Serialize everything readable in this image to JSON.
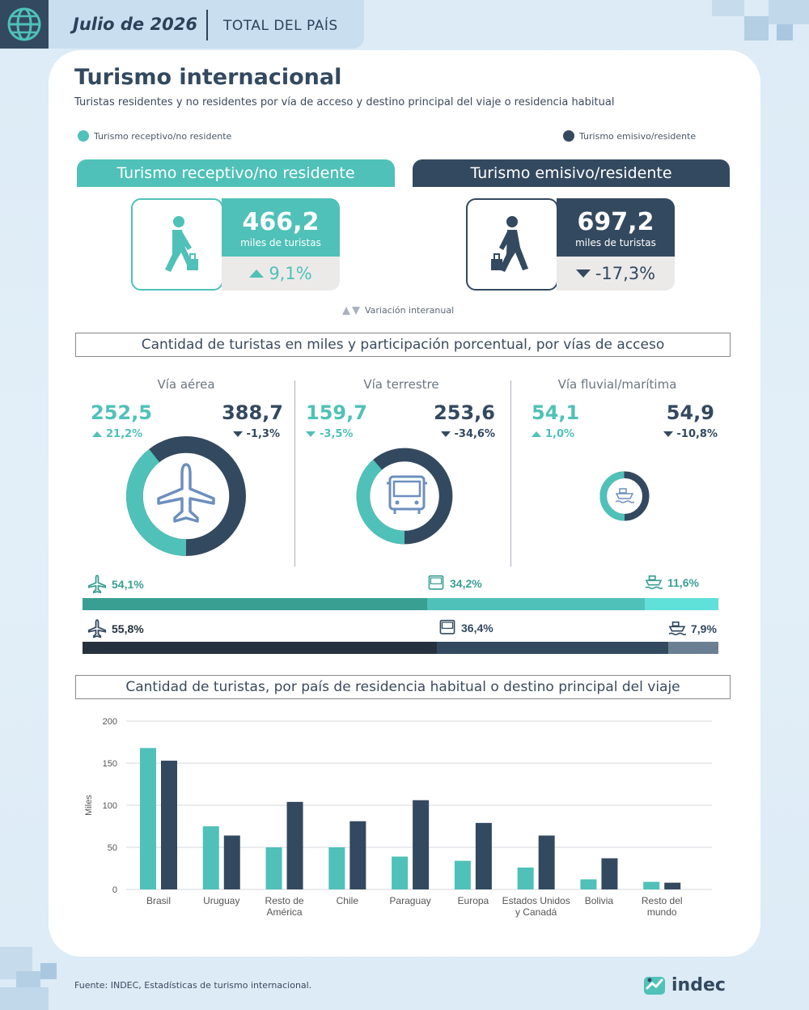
{
  "header": {
    "date": "Julio de 2026",
    "scope": "TOTAL DEL PAÍS",
    "icon": "globe-icon"
  },
  "title": "Turismo internacional",
  "subtitle": "Turistas residentes y no residentes por vía de acceso y destino principal del viaje o residencia habitual",
  "legend": {
    "receptivo": "Turismo receptivo/no residente",
    "emisivo": "Turismo emisivo/residente"
  },
  "colors": {
    "receptivo": "#4fc1b8",
    "emisivo": "#33495f",
    "receptivo_dark": "#3a9f93",
    "receptivo_light": "#5fe0d8",
    "emisivo_dark": "#25313d",
    "emisivo_light": "#6b7f92"
  },
  "receptivo": {
    "band": "Turismo receptivo/no residente",
    "value": "466,2",
    "unit": "miles de turistas",
    "variation": "9,1%",
    "direction": "up",
    "icon": "walking-tourist-icon"
  },
  "emisivo": {
    "band": "Turismo emisivo/residente",
    "value": "697,2",
    "unit": "miles de turistas",
    "variation": "-17,3%",
    "direction": "down",
    "icon": "walking-tourist-icon"
  },
  "variation_note": "Variación interanual",
  "section1_title": "Cantidad de turistas en miles y participación porcentual, por vías de acceso",
  "vias": [
    {
      "name": "Vía aérea",
      "rec_value": "252,5",
      "rec_var": "21,2%",
      "rec_dir": "up",
      "emi_value": "388,7",
      "emi_var": "-1,3%",
      "emi_dir": "down",
      "icon": "airplane-icon"
    },
    {
      "name": "Vía terrestre",
      "rec_value": "159,7",
      "rec_var": "-3,5%",
      "rec_dir": "down",
      "emi_value": "253,6",
      "emi_var": "-34,6%",
      "emi_dir": "down",
      "icon": "bus-icon"
    },
    {
      "name": "Vía fluvial/marítima",
      "rec_value": "54,1",
      "rec_var": "1,0%",
      "rec_dir": "up",
      "emi_value": "54,9",
      "emi_var": "-10,8%",
      "emi_dir": "down",
      "icon": "ship-icon"
    }
  ],
  "shares": {
    "receptivo": [
      {
        "label": "54,1%",
        "value": 54.1,
        "icon": "airplane-icon"
      },
      {
        "label": "34,2%",
        "value": 34.2,
        "icon": "bus-icon"
      },
      {
        "label": "11,6%",
        "value": 11.6,
        "icon": "ship-icon"
      }
    ],
    "emisivo": [
      {
        "label": "55,8%",
        "value": 55.8,
        "icon": "airplane-icon"
      },
      {
        "label": "36,4%",
        "value": 36.4,
        "icon": "bus-icon"
      },
      {
        "label": "7,9%",
        "value": 7.9,
        "icon": "ship-icon"
      }
    ]
  },
  "section2_title": "Cantidad de turistas, por país de residencia habitual o destino principal del viaje",
  "chart_data": {
    "type": "bar",
    "ylabel": "Miles",
    "ylim": [
      0,
      200
    ],
    "yticks": [
      0,
      50,
      100,
      150,
      200
    ],
    "grid": true,
    "categories": [
      [
        "Brasil"
      ],
      [
        "Uruguay"
      ],
      [
        "Resto de",
        "América"
      ],
      [
        "Chile"
      ],
      [
        "Paraguay"
      ],
      [
        "Europa"
      ],
      [
        "Estados Unidos",
        "y Canadá"
      ],
      [
        "Bolivia"
      ],
      [
        "Resto del",
        "mundo"
      ]
    ],
    "series": [
      {
        "values": [
          168,
          75,
          50,
          50,
          39,
          34,
          26,
          12,
          9
        ]
      },
      {
        "values": [
          153,
          64,
          104,
          81,
          106,
          79,
          64,
          37,
          8
        ]
      }
    ]
  },
  "source": "Fuente: INDEC, Estadísticas de turismo internacional.",
  "logo": "indec"
}
